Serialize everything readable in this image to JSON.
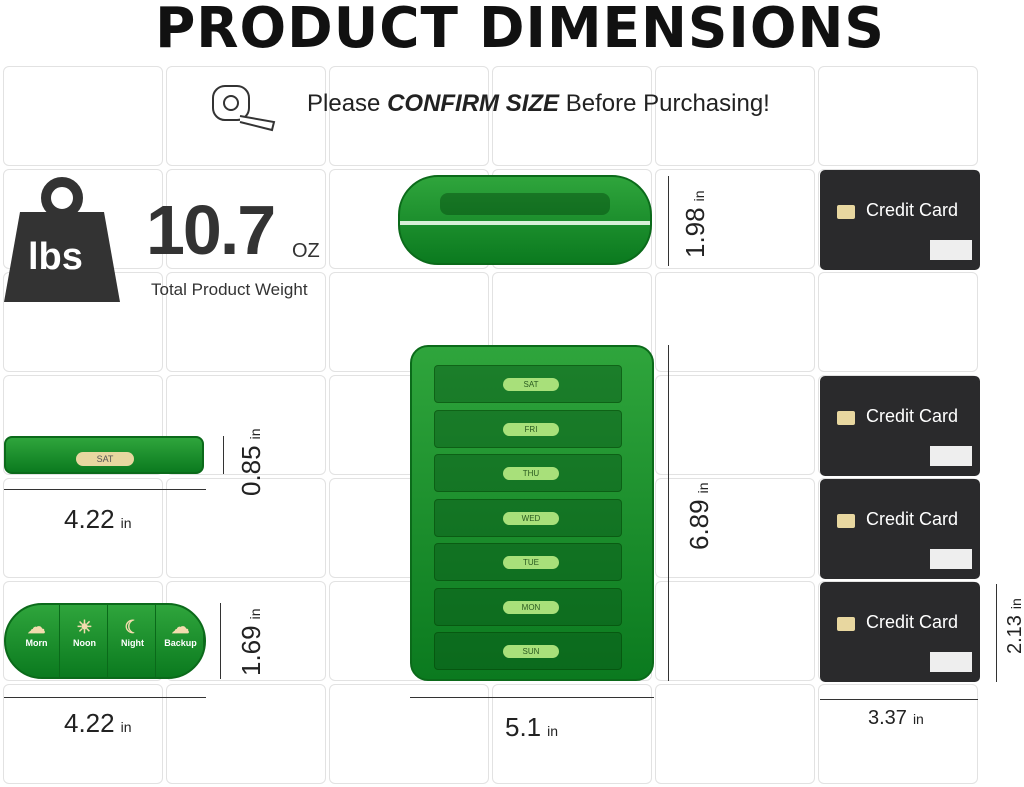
{
  "title": "PRODUCT DIMENSIONS",
  "banner": {
    "prefix": "Please",
    "emphasis": "CONFIRM SIZE",
    "suffix": "Before Purchasing!",
    "icon": "tape-measure-icon"
  },
  "weight": {
    "icon_label": "lbs",
    "value": "10.7",
    "unit": "OZ",
    "caption": "Total Product Weight"
  },
  "dimensions": {
    "top_height": {
      "value": "1.98",
      "unit": "in"
    },
    "main_height": {
      "value": "6.89",
      "unit": "in"
    },
    "main_width": {
      "value": "5.1",
      "unit": "in"
    },
    "side_thickness": {
      "value": "0.85",
      "unit": "in"
    },
    "side_width": {
      "value": "4.22",
      "unit": "in"
    },
    "pill_height": {
      "value": "1.69",
      "unit": "in"
    },
    "pill_width": {
      "value": "4.22",
      "unit": "in"
    },
    "card_height": {
      "value": "2.13",
      "unit": "in"
    },
    "card_width": {
      "value": "3.37",
      "unit": "in"
    }
  },
  "card_label": "Credit Card",
  "days": [
    "SAT",
    "FRI",
    "THU",
    "WED",
    "TUE",
    "MON",
    "SUN"
  ],
  "side_label": "SAT",
  "compartments": [
    "Morn",
    "Noon",
    "Night",
    "Backup"
  ],
  "colors": {
    "product_green": "#1a9430",
    "card": "#2a2a2c"
  }
}
